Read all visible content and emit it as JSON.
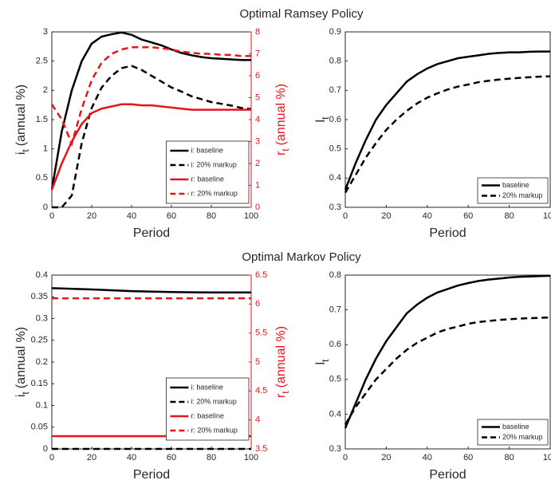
{
  "chart_data": [
    {
      "type": "line",
      "title": "Optimal Ramsey Policy",
      "x": [
        0,
        5,
        10,
        15,
        20,
        25,
        30,
        35,
        40,
        45,
        50,
        55,
        60,
        65,
        70,
        75,
        80,
        85,
        90,
        95,
        100
      ],
      "xlim": [
        0,
        100
      ],
      "xticks": [
        0,
        20,
        40,
        60,
        80,
        100
      ],
      "xlabel": "Period",
      "ylim": [
        0,
        3
      ],
      "yticks": [
        0,
        0.5,
        1,
        1.5,
        2,
        2.5,
        3
      ],
      "ylabel": {
        "symbol": "i",
        "subscript": "t",
        "unit": "(annual %)"
      },
      "y2lim": [
        0,
        8
      ],
      "y2ticks": [
        0,
        1,
        2,
        3,
        4,
        5,
        6,
        7,
        8
      ],
      "y2color": "#e8141c",
      "y2label": {
        "symbol": "r",
        "subscript": "t",
        "unit": "(annual %)"
      },
      "legend": "lower right",
      "series": [
        {
          "name": "i: baseline",
          "color": "#000000",
          "dashed": false,
          "values": [
            0.3,
            1.3,
            2.0,
            2.5,
            2.8,
            2.92,
            2.96,
            2.99,
            2.95,
            2.87,
            2.82,
            2.77,
            2.7,
            2.64,
            2.6,
            2.57,
            2.55,
            2.54,
            2.53,
            2.52,
            2.52
          ]
        },
        {
          "name": "i: 20% markup",
          "color": "#000000",
          "dashed": true,
          "values": [
            0,
            0,
            0.2,
            1.1,
            1.7,
            2.05,
            2.25,
            2.38,
            2.42,
            2.35,
            2.25,
            2.15,
            2.05,
            1.98,
            1.9,
            1.85,
            1.8,
            1.77,
            1.74,
            1.7,
            1.68
          ]
        },
        {
          "name": "r: baseline",
          "color": "#e8141c",
          "dashed": false,
          "axis": "y2",
          "values": [
            0.8,
            2.0,
            3.0,
            3.8,
            4.3,
            4.5,
            4.6,
            4.7,
            4.7,
            4.65,
            4.65,
            4.6,
            4.55,
            4.5,
            4.45,
            4.45,
            4.45,
            4.45,
            4.45,
            4.45,
            4.45
          ]
        },
        {
          "name": "r: 20% markup",
          "color": "#e8141c",
          "dashed": true,
          "axis": "y2",
          "values": [
            4.7,
            4.0,
            2.9,
            4.5,
            5.8,
            6.6,
            7.0,
            7.2,
            7.3,
            7.3,
            7.3,
            7.25,
            7.2,
            7.1,
            7.05,
            7.0,
            7.0,
            6.95,
            6.95,
            6.9,
            6.9
          ]
        }
      ]
    },
    {
      "type": "line",
      "x": [
        0,
        5,
        10,
        15,
        20,
        25,
        30,
        35,
        40,
        45,
        50,
        55,
        60,
        65,
        70,
        75,
        80,
        85,
        90,
        95,
        100
      ],
      "xlim": [
        0,
        100
      ],
      "xticks": [
        0,
        20,
        40,
        60,
        80,
        100
      ],
      "xlabel": "Period",
      "ylim": [
        0.3,
        0.9
      ],
      "yticks": [
        0.3,
        0.4,
        0.5,
        0.6,
        0.7,
        0.8,
        0.9
      ],
      "ylabel": {
        "symbol": "l",
        "subscript": "t"
      },
      "legend": "lower right",
      "series": [
        {
          "name": "baseline",
          "color": "#000000",
          "dashed": false,
          "values": [
            0.36,
            0.45,
            0.53,
            0.6,
            0.65,
            0.69,
            0.73,
            0.755,
            0.775,
            0.79,
            0.8,
            0.81,
            0.815,
            0.82,
            0.825,
            0.828,
            0.83,
            0.83,
            0.832,
            0.833,
            0.833
          ]
        },
        {
          "name": "20% markup",
          "color": "#000000",
          "dashed": true,
          "values": [
            0.35,
            0.41,
            0.47,
            0.52,
            0.565,
            0.6,
            0.63,
            0.655,
            0.675,
            0.69,
            0.703,
            0.713,
            0.72,
            0.728,
            0.733,
            0.737,
            0.74,
            0.743,
            0.745,
            0.747,
            0.748
          ]
        }
      ]
    },
    {
      "type": "line",
      "title": "Optimal Markov Policy",
      "x": [
        0,
        20,
        40,
        60,
        80,
        100
      ],
      "xlim": [
        0,
        100
      ],
      "xticks": [
        0,
        20,
        40,
        60,
        80,
        100
      ],
      "xlabel": "Period",
      "ylim": [
        0,
        0.4
      ],
      "yticks": [
        0,
        0.05,
        0.1,
        0.15,
        0.2,
        0.25,
        0.3,
        0.35,
        0.4
      ],
      "ylabel": {
        "symbol": "i",
        "subscript": "t",
        "unit": "(annual %)"
      },
      "y2lim": [
        3.5,
        6.5
      ],
      "y2ticks": [
        3.5,
        4,
        4.5,
        5,
        5.5,
        6,
        6.5
      ],
      "y2color": "#e8141c",
      "y2label": {
        "symbol": "r",
        "subscript": "t",
        "unit": "(annual %)"
      },
      "legend": "center right",
      "series": [
        {
          "name": "i: baseline",
          "color": "#000000",
          "dashed": false,
          "values": [
            0.37,
            0.367,
            0.363,
            0.361,
            0.36,
            0.36
          ]
        },
        {
          "name": "i: 20% markup",
          "color": "#000000",
          "dashed": true,
          "values": [
            0,
            0,
            0,
            0,
            0,
            0
          ]
        },
        {
          "name": "r: baseline",
          "color": "#e8141c",
          "dashed": false,
          "axis": "y2",
          "values": [
            3.72,
            3.72,
            3.72,
            3.72,
            3.72,
            3.72
          ]
        },
        {
          "name": "r: 20% markup",
          "color": "#e8141c",
          "dashed": true,
          "axis": "y2",
          "values": [
            6.1,
            6.1,
            6.1,
            6.1,
            6.1,
            6.1
          ]
        }
      ]
    },
    {
      "type": "line",
      "x": [
        0,
        5,
        10,
        15,
        20,
        25,
        30,
        35,
        40,
        45,
        50,
        55,
        60,
        65,
        70,
        75,
        80,
        85,
        90,
        95,
        100
      ],
      "xlim": [
        0,
        100
      ],
      "xticks": [
        0,
        20,
        40,
        60,
        80,
        100
      ],
      "xlabel": "Period",
      "ylim": [
        0.3,
        0.8
      ],
      "yticks": [
        0.3,
        0.4,
        0.5,
        0.6,
        0.7,
        0.8
      ],
      "ylabel": {
        "symbol": "l",
        "subscript": "t"
      },
      "legend": "lower right",
      "series": [
        {
          "name": "baseline",
          "color": "#000000",
          "dashed": false,
          "values": [
            0.36,
            0.43,
            0.5,
            0.56,
            0.61,
            0.65,
            0.69,
            0.715,
            0.735,
            0.75,
            0.76,
            0.77,
            0.777,
            0.783,
            0.787,
            0.79,
            0.793,
            0.795,
            0.796,
            0.797,
            0.798
          ]
        },
        {
          "name": "20% markup",
          "color": "#000000",
          "dashed": true,
          "values": [
            0.37,
            0.42,
            0.46,
            0.5,
            0.53,
            0.56,
            0.585,
            0.605,
            0.62,
            0.635,
            0.645,
            0.652,
            0.66,
            0.665,
            0.668,
            0.671,
            0.673,
            0.675,
            0.676,
            0.677,
            0.678
          ]
        }
      ]
    }
  ]
}
